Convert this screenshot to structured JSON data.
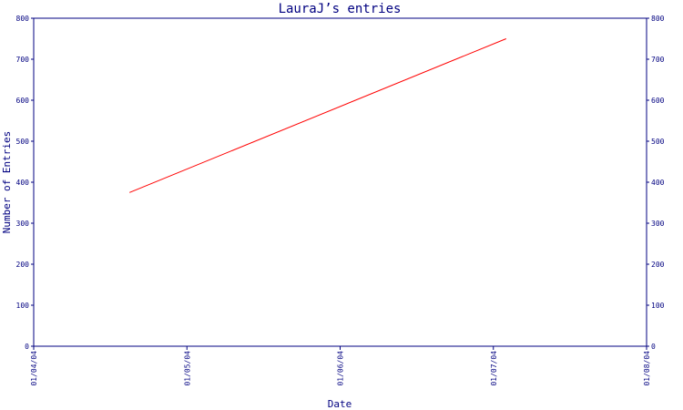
{
  "chart_data": {
    "type": "line",
    "title": "LauraJ’s entries",
    "xlabel": "Date",
    "ylabel": "Number of Entries",
    "xlim": [
      "2004-01-04",
      "2004-01-08"
    ],
    "ylim": [
      0,
      800
    ],
    "x_ticks": [
      "01/04/04",
      "01/05/04",
      "01/06/04",
      "01/07/04",
      "01/08/04"
    ],
    "y_ticks": [
      0,
      100,
      200,
      300,
      400,
      500,
      600,
      700,
      800
    ],
    "y_ticks_right": [
      0,
      100,
      200,
      300,
      400,
      500,
      600,
      700,
      800
    ],
    "grid": false,
    "legend": "none",
    "colors": {
      "axis": "#000080",
      "line": "#ff0000"
    },
    "series": [
      {
        "x": [
          "2004-01-04T15:00",
          "2004-01-07T02:00"
        ],
        "values": [
          375,
          750
        ]
      }
    ]
  }
}
